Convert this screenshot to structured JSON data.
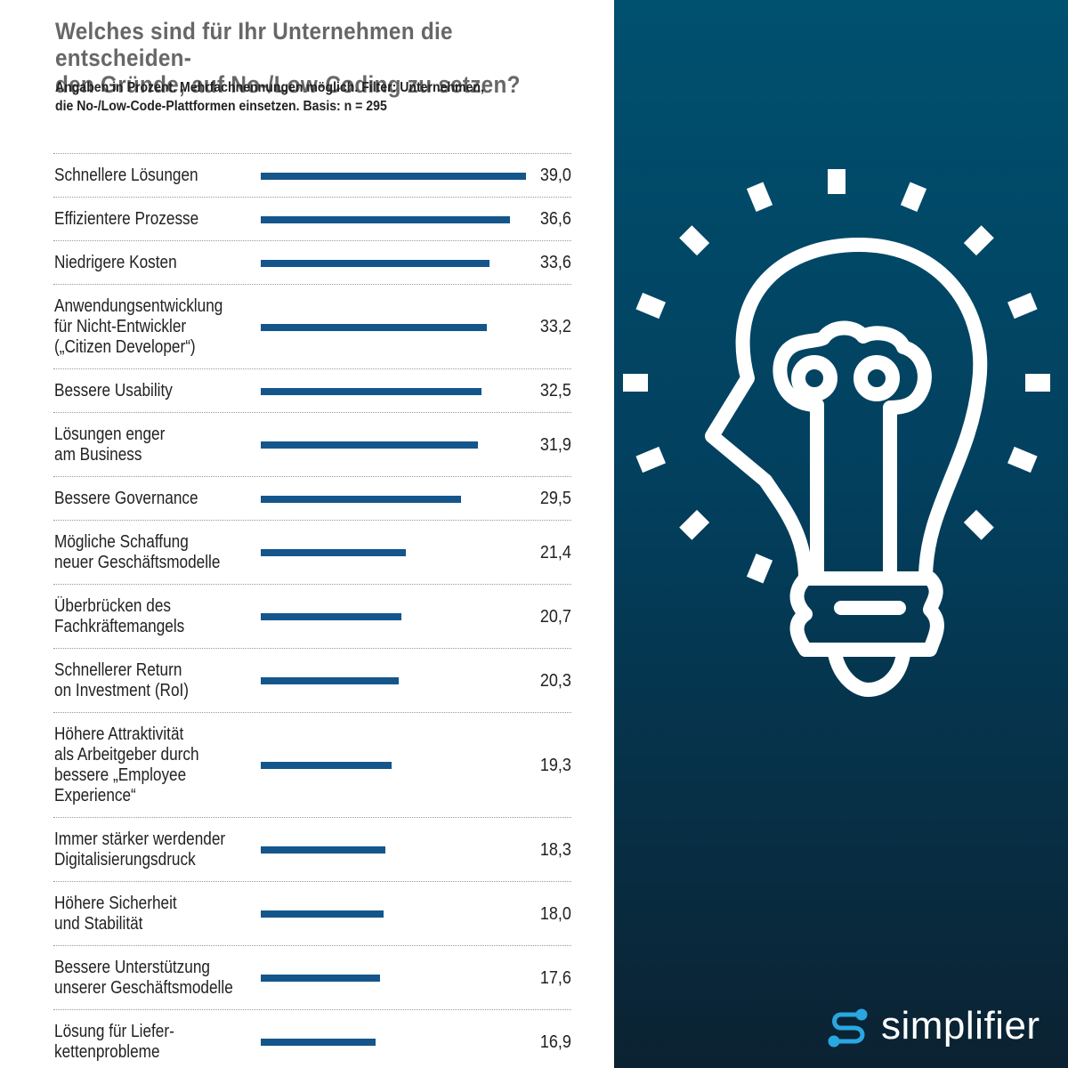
{
  "chart_data": {
    "type": "bar",
    "title": "Welches sind für Ihr Unternehmen die entscheiden-\nden Gründe, auf No-/Low-Coding zu setzen?",
    "subtitle": "Angaben in Prozent. Mehrfachnennungen möglich. Filter: Unternehmen,\ndie No-/Low-Code-Plattformen einsetzen. Basis: n = 295",
    "categories": [
      "Schnellere Lösungen",
      "Effizientere Prozesse",
      "Niedrigere Kosten",
      "Anwendungsentwicklung\nfür Nicht-Entwickler\n(„Citizen Developer“)",
      "Bessere Usability",
      "Lösungen enger\nam Business",
      "Bessere Governance",
      "Mögliche Schaffung\nneuer Geschäftsmodelle",
      "Überbrücken des\nFachkräftemangels",
      "Schnellerer Return\non Investment (RoI)",
      "Höhere Attraktivität\nals Arbeitgeber durch\nbessere „Employee\nExperience“",
      "Immer stärker werdender\nDigitalisierungsdruck",
      "Höhere Sicherheit\nund Stabilität",
      "Bessere Unterstützung\nunserer Geschäftsmodelle",
      "Lösung für Liefer-\nkettenprobleme"
    ],
    "values": [
      39.0,
      36.6,
      33.6,
      33.2,
      32.5,
      31.9,
      29.5,
      21.4,
      20.7,
      20.3,
      19.3,
      18.3,
      18.0,
      17.6,
      16.9
    ],
    "value_labels": [
      "39,0",
      "36,6",
      "33,6",
      "33,2",
      "32,5",
      "31,9",
      "29,5",
      "21,4",
      "20,7",
      "20,3",
      "19,3",
      "18,3",
      "18,0",
      "17,6",
      "16,9"
    ],
    "color": "#14568c"
  },
  "brand": {
    "name": "simplifier"
  }
}
